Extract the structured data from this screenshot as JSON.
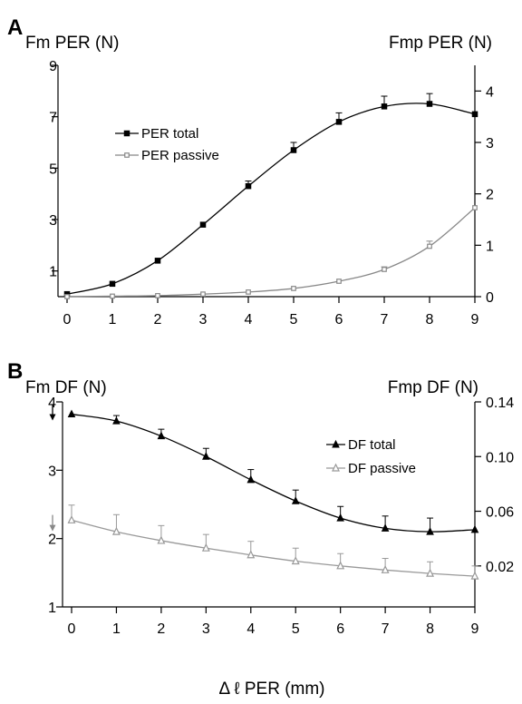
{
  "chart_data": [
    {
      "type": "line",
      "panel_label": "A",
      "ylabel_left": "Fm PER (N)",
      "ylabel_right": "Fmp PER (N)",
      "x": [
        0,
        1,
        2,
        3,
        4,
        5,
        6,
        7,
        8,
        9
      ],
      "xlim": [
        0,
        9
      ],
      "xticks": [
        0,
        1,
        2,
        3,
        4,
        5,
        6,
        7,
        8,
        9
      ],
      "ylim_left": [
        0,
        9
      ],
      "yticks_left": [
        1,
        3,
        5,
        7,
        9
      ],
      "ylim_right": [
        0,
        4.5
      ],
      "yticks_right": [
        0,
        1,
        2,
        3,
        4
      ],
      "grid": false,
      "legend": "upper-left",
      "series": [
        {
          "name": "PER total",
          "axis": "left",
          "marker": "filled-square",
          "color": "#000000",
          "values": [
            0.1,
            0.5,
            1.4,
            2.8,
            4.3,
            5.7,
            6.8,
            7.4,
            7.5,
            7.1
          ],
          "error": [
            0,
            0,
            0,
            0,
            0.2,
            0.3,
            0.35,
            0.4,
            0.4,
            0
          ]
        },
        {
          "name": "PER passive",
          "axis": "right",
          "marker": "open-square",
          "color": "#888888",
          "values": [
            0.0,
            0.01,
            0.02,
            0.05,
            0.09,
            0.16,
            0.3,
            0.53,
            0.98,
            1.73
          ],
          "error": [
            0,
            0,
            0,
            0,
            0,
            0,
            0,
            0.05,
            0.1,
            0
          ]
        }
      ]
    },
    {
      "type": "line",
      "panel_label": "B",
      "ylabel_left": "Fm DF (N)",
      "ylabel_right": "Fmp DF (N)",
      "xlabel": "Δ ℓ PER (mm)",
      "x": [
        0,
        1,
        2,
        3,
        4,
        5,
        6,
        7,
        8,
        9
      ],
      "xlim": [
        0,
        9
      ],
      "xticks": [
        0,
        1,
        2,
        3,
        4,
        5,
        6,
        7,
        8,
        9
      ],
      "ylim_left": [
        1,
        4
      ],
      "yticks_left": [
        1,
        2,
        3,
        4
      ],
      "ylim_right": [
        -0.01,
        0.14
      ],
      "yticks_right": [
        0.02,
        0.06,
        0.1,
        0.14
      ],
      "grid": false,
      "legend": "upper-right",
      "series": [
        {
          "name": "DF total",
          "axis": "left",
          "marker": "filled-triangle",
          "color": "#000000",
          "values": [
            3.82,
            3.72,
            3.5,
            3.2,
            2.86,
            2.55,
            2.3,
            2.15,
            2.1,
            2.13
          ],
          "error": [
            0,
            0.08,
            0.1,
            0.12,
            0.15,
            0.16,
            0.17,
            0.18,
            0.2,
            0
          ]
        },
        {
          "name": "DF passive",
          "axis": "left",
          "marker": "open-triangle",
          "color": "#999999",
          "values": [
            2.27,
            2.1,
            1.97,
            1.86,
            1.76,
            1.67,
            1.6,
            1.54,
            1.49,
            1.45
          ],
          "error": [
            0.22,
            0.25,
            0.22,
            0.2,
            0.2,
            0.19,
            0.18,
            0.17,
            0.17,
            0.15
          ]
        }
      ]
    }
  ]
}
